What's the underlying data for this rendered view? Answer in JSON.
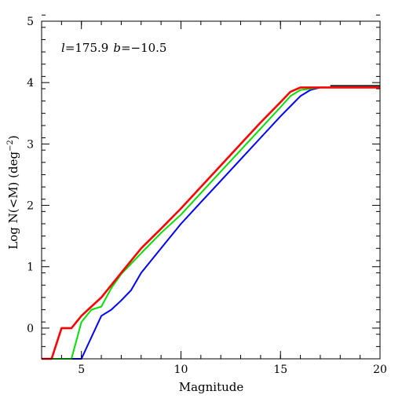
{
  "chart_data": {
    "type": "line",
    "xlabel": "Magnitude",
    "ylabel_main": "Log N(<M) (deg",
    "ylabel_sup": "−2",
    "ylabel_close": ")",
    "xlim": [
      3,
      20
    ],
    "ylim": [
      -0.5,
      5
    ],
    "x_major_ticks": [
      5,
      10,
      15,
      20
    ],
    "x_tick_labels": [
      "5",
      "10",
      "15",
      "20"
    ],
    "x_minor_step": 1,
    "y_major_ticks": [
      0,
      1,
      2,
      3,
      4,
      5
    ],
    "y_tick_labels": [
      "0",
      "1",
      "2",
      "3",
      "4",
      "5"
    ],
    "y_minor_step": 0.2,
    "grid": false,
    "annotation": {
      "l_symbol": "l",
      "l_value": "=175.9",
      "b_symbol": "b",
      "b_value": "=−10.5"
    },
    "series": [
      {
        "color": "#000000",
        "x": [
          17.5,
          20
        ],
        "y": [
          3.95,
          3.95
        ]
      },
      {
        "color": "#0000ff",
        "x": [
          3,
          5.0,
          5.5,
          6.0,
          6.5,
          7.0,
          7.5,
          8.0,
          9.0,
          10.0,
          11.0,
          12.0,
          13.0,
          14.0,
          15.0,
          16.0,
          16.5,
          17.0,
          18.0,
          19.0,
          20.0
        ],
        "y": [
          -0.5,
          -0.5,
          -0.15,
          0.2,
          0.3,
          0.45,
          0.62,
          0.9,
          1.3,
          1.7,
          2.05,
          2.4,
          2.75,
          3.1,
          3.45,
          3.78,
          3.88,
          3.92,
          3.92,
          3.92,
          3.92
        ]
      },
      {
        "color": "#00e000",
        "x": [
          3,
          4.5,
          5.0,
          5.5,
          6.0,
          6.5,
          7.0,
          7.5,
          8.0,
          9.0,
          10.0,
          11.0,
          12.0,
          13.0,
          14.0,
          15.0,
          15.5,
          16.0,
          17.0,
          18.0,
          19.0,
          20.0
        ],
        "y": [
          -0.5,
          -0.5,
          0.1,
          0.3,
          0.35,
          0.65,
          0.88,
          1.05,
          1.22,
          1.55,
          1.85,
          2.2,
          2.55,
          2.9,
          3.25,
          3.6,
          3.78,
          3.88,
          3.92,
          3.92,
          3.92,
          3.92
        ]
      },
      {
        "color": "#ff0000",
        "x": [
          3,
          3.5,
          4.0,
          4.5,
          5.0,
          5.5,
          6.0,
          6.5,
          7.0,
          7.5,
          8.0,
          9.0,
          10.0,
          11.0,
          12.0,
          13.0,
          14.0,
          15.0,
          15.5,
          16.0,
          17.0,
          18.0,
          19.0,
          20.0
        ],
        "y": [
          -0.5,
          -0.5,
          0.0,
          0.0,
          0.2,
          0.35,
          0.5,
          0.7,
          0.9,
          1.1,
          1.3,
          1.62,
          1.95,
          2.3,
          2.65,
          3.0,
          3.35,
          3.68,
          3.85,
          3.92,
          3.92,
          3.92,
          3.92,
          3.92
        ]
      }
    ]
  }
}
